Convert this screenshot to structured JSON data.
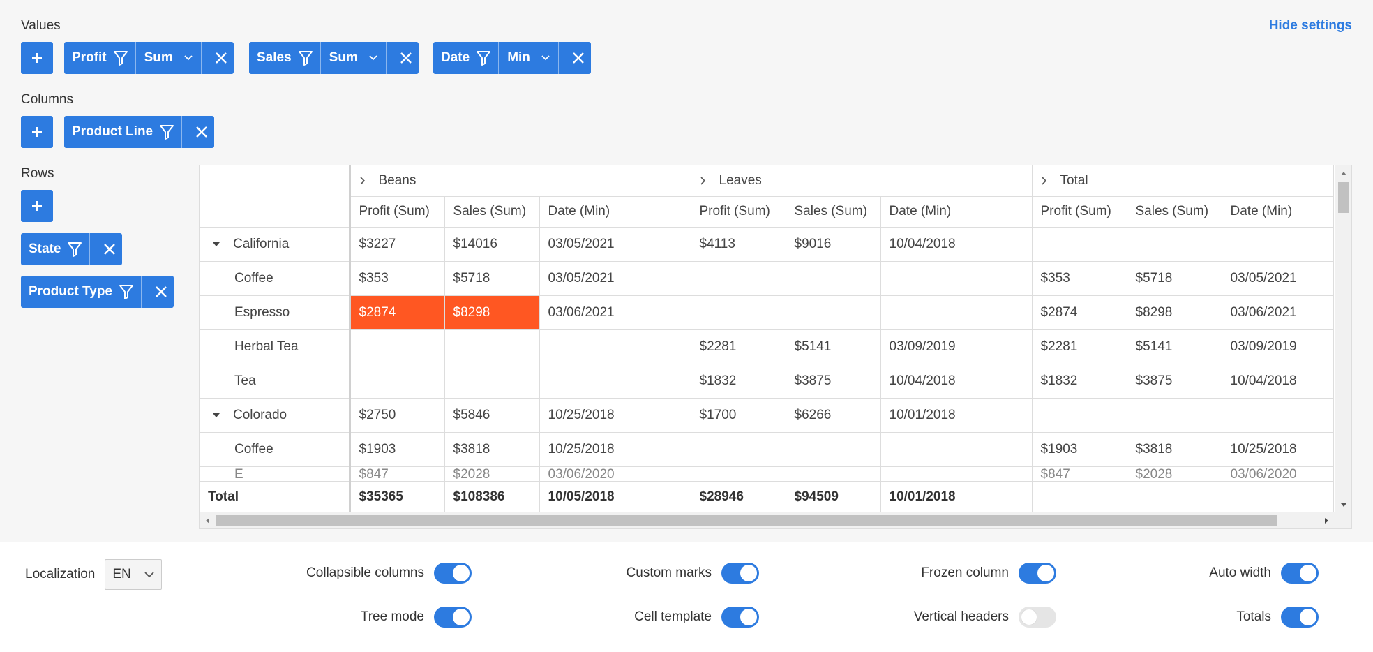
{
  "header": {
    "hide_settings": "Hide settings"
  },
  "sections": {
    "values": "Values",
    "columns": "Columns",
    "rows": "Rows"
  },
  "values_chips": [
    {
      "field": "Profit",
      "agg": "Sum"
    },
    {
      "field": "Sales",
      "agg": "Sum"
    },
    {
      "field": "Date",
      "agg": "Min"
    }
  ],
  "column_chips": [
    {
      "field": "Product Line"
    }
  ],
  "row_chips": [
    {
      "field": "State"
    },
    {
      "field": "Product Type"
    }
  ],
  "grid": {
    "groups": [
      "Beans",
      "Leaves",
      "Total"
    ],
    "subcols": [
      "Profit (Sum)",
      "Sales (Sum)",
      "Date (Min)"
    ],
    "rows": [
      {
        "label": "California",
        "group": true,
        "cells": [
          "$3227",
          "$14016",
          "03/05/2021",
          "$4113",
          "$9016",
          "10/04/2018",
          "",
          "",
          ""
        ]
      },
      {
        "label": "Coffee",
        "cells": [
          "$353",
          "$5718",
          "03/05/2021",
          "",
          "",
          "",
          "$353",
          "$5718",
          "03/05/2021"
        ]
      },
      {
        "label": "Espresso",
        "cells": [
          "$2874",
          "$8298",
          "03/06/2021",
          "",
          "",
          "",
          "$2874",
          "$8298",
          "03/06/2021"
        ]
      },
      {
        "label": "Herbal Tea",
        "cells": [
          "",
          "",
          "",
          "$2281",
          "$5141",
          "03/09/2019",
          "$2281",
          "$5141",
          "03/09/2019"
        ]
      },
      {
        "label": "Tea",
        "cells": [
          "",
          "",
          "",
          "$1832",
          "$3875",
          "10/04/2018",
          "$1832",
          "$3875",
          "10/04/2018"
        ]
      },
      {
        "label": "Colorado",
        "group": true,
        "cells": [
          "$2750",
          "$5846",
          "10/25/2018",
          "$1700",
          "$6266",
          "10/01/2018",
          "",
          "",
          ""
        ]
      },
      {
        "label": "Coffee",
        "cells": [
          "$1903",
          "$3818",
          "10/25/2018",
          "",
          "",
          "",
          "$1903",
          "$3818",
          "10/25/2018"
        ]
      },
      {
        "label": "E",
        "cells": [
          "$847",
          "$2028",
          "03/06/2020",
          "",
          "",
          "",
          "$847",
          "$2028",
          "03/06/2020"
        ]
      }
    ],
    "totals": {
      "label": "Total",
      "cells": [
        "$35365",
        "$108386",
        "10/05/2018",
        "$28946",
        "$94509",
        "10/01/2018",
        "",
        "",
        ""
      ]
    },
    "highlight_color": "#ff5722"
  },
  "settings": {
    "localization_label": "Localization",
    "localization_value": "EN",
    "toggles": [
      {
        "label": "Collapsible columns",
        "on": true
      },
      {
        "label": "Custom marks",
        "on": true
      },
      {
        "label": "Frozen column",
        "on": true
      },
      {
        "label": "Auto width",
        "on": true
      },
      {
        "label": "Tree mode",
        "on": true
      },
      {
        "label": "Cell template",
        "on": true
      },
      {
        "label": "Vertical headers",
        "on": false
      },
      {
        "label": "Totals",
        "on": true
      }
    ]
  },
  "colors": {
    "accent": "#2d7be0"
  }
}
